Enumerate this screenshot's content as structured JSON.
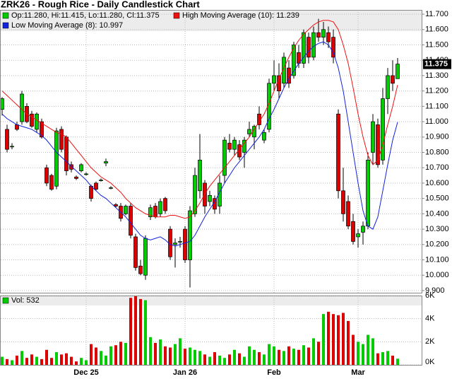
{
  "chart_data": [
    {
      "type": "candlestick",
      "title": "ZRK26 - Rough Rice - Daily Candlestick Chart",
      "categories": [
        null,
        null,
        null,
        null,
        null,
        null,
        null,
        null,
        null,
        null,
        null,
        null,
        null,
        null,
        null,
        null,
        null,
        "Dec 25",
        null,
        null,
        null,
        null,
        null,
        null,
        null,
        null,
        null,
        null,
        null,
        null,
        null,
        null,
        null,
        null,
        null,
        null,
        null,
        "Jan 26",
        null,
        null,
        null,
        null,
        null,
        null,
        null,
        null,
        null,
        null,
        null,
        null,
        null,
        null,
        null,
        null,
        null,
        "Feb",
        null,
        null,
        null,
        null,
        null,
        null,
        null,
        null,
        null,
        null,
        null,
        null,
        null,
        null,
        null,
        null,
        "Mar",
        null,
        null,
        null,
        null,
        null,
        null,
        null,
        null
      ],
      "ylim": [
        9.886,
        11.728
      ],
      "yticks": [
        {
          "value": 9.9,
          "label": "9.900"
        },
        {
          "value": 10.0,
          "label": "10.000"
        },
        {
          "value": 10.1,
          "label": "10.100"
        },
        {
          "value": 10.2,
          "label": "10.200"
        },
        {
          "value": 10.3,
          "label": "10.300"
        },
        {
          "value": 10.4,
          "label": "10.400"
        },
        {
          "value": 10.5,
          "label": "10.500"
        },
        {
          "value": 10.6,
          "label": "10.600"
        },
        {
          "value": 10.7,
          "label": "10.700"
        },
        {
          "value": 10.8,
          "label": "10.800"
        },
        {
          "value": 10.9,
          "label": "10.900"
        },
        {
          "value": 11.0,
          "label": "11.000"
        },
        {
          "value": 11.1,
          "label": "11.100"
        },
        {
          "value": 11.2,
          "label": "11.200"
        },
        {
          "value": 11.3,
          "label": "11.300"
        },
        {
          "value": 11.4,
          "label": "11.400"
        },
        {
          "value": 11.5,
          "label": "11.500"
        },
        {
          "value": 11.6,
          "label": "11.600"
        },
        {
          "value": 11.7,
          "label": "11.700"
        }
      ],
      "grid": true,
      "last_label": "11.375",
      "series": [
        {
          "name": "Op:11.280, Hi:11.415, Lo:11.280, Cl:11.375",
          "color": "#00cc00",
          "down_color": "#dd0000",
          "open": [
            11.08,
            10.95,
            10.84,
            10.98,
            11.0,
            11.1,
            11.05,
            10.95,
            11.0,
            10.7,
            10.65,
            10.58,
            10.95,
            10.9,
            10.72,
            10.64,
            10.68,
            10.66,
            10.58,
            10.6,
            10.62,
            10.73,
            10.57,
            10.46,
            10.45,
            10.4,
            10.45,
            10.25,
            10.06,
            10.0,
            10.38,
            10.45,
            10.4,
            10.5,
            10.3,
            10.2,
            10.22,
            10.3,
            10.1,
            10.4,
            10.55,
            10.6,
            10.48,
            10.5,
            10.45,
            10.65,
            10.86,
            10.82,
            10.85,
            10.8,
            10.92,
            10.9,
            11.05,
            10.88,
            10.95,
            11.25,
            11.3,
            11.25,
            11.35,
            11.3,
            11.45,
            11.38,
            11.55,
            11.42,
            11.58,
            11.55,
            11.58,
            11.55,
            11.05,
            10.55,
            10.48,
            10.35,
            10.25,
            10.28,
            10.32,
            10.8,
            10.98,
            10.75,
            11.15,
            11.3,
            11.28
          ],
          "high": [
            11.16,
            10.98,
            10.86,
            11.0,
            11.2,
            11.12,
            11.07,
            11.06,
            11.02,
            10.72,
            10.66,
            10.96,
            10.97,
            10.91,
            10.74,
            10.65,
            10.73,
            10.67,
            10.59,
            10.61,
            10.63,
            10.76,
            10.58,
            10.47,
            10.47,
            10.46,
            10.47,
            10.27,
            10.1,
            10.26,
            10.46,
            10.47,
            10.5,
            10.51,
            10.32,
            10.24,
            10.25,
            10.32,
            10.45,
            10.7,
            10.92,
            10.62,
            10.55,
            10.52,
            10.65,
            10.9,
            10.92,
            10.9,
            10.88,
            10.9,
            11.0,
            10.98,
            11.1,
            10.95,
            11.28,
            11.4,
            11.38,
            11.45,
            11.4,
            11.52,
            11.5,
            11.6,
            11.58,
            11.62,
            11.67,
            11.65,
            11.62,
            11.6,
            11.08,
            10.7,
            10.52,
            10.4,
            10.3,
            10.35,
            10.8,
            11.05,
            11.02,
            11.22,
            11.35,
            11.4,
            11.415
          ],
          "low": [
            11.04,
            10.8,
            10.82,
            10.94,
            10.98,
            10.99,
            10.96,
            10.93,
            10.89,
            10.58,
            10.55,
            10.56,
            10.8,
            10.65,
            10.67,
            10.62,
            10.67,
            10.65,
            10.48,
            10.55,
            10.61,
            10.71,
            10.56,
            10.44,
            10.35,
            10.39,
            10.24,
            10.03,
            10.0,
            9.97,
            10.36,
            10.37,
            10.38,
            10.4,
            10.1,
            10.05,
            10.18,
            10.08,
            9.92,
            10.38,
            10.5,
            10.4,
            10.45,
            10.4,
            10.4,
            10.6,
            10.8,
            10.78,
            10.75,
            10.7,
            10.9,
            10.82,
            10.95,
            10.86,
            10.93,
            11.2,
            11.15,
            11.22,
            11.22,
            11.28,
            11.35,
            11.35,
            11.38,
            11.4,
            11.52,
            11.5,
            11.48,
            11.38,
            10.5,
            10.35,
            10.3,
            10.2,
            10.18,
            10.2,
            10.3,
            10.72,
            10.7,
            10.72,
            11.05,
            11.2,
            11.28
          ],
          "close": [
            11.15,
            10.82,
            10.84,
            10.95,
            11.18,
            11.0,
            10.97,
            11.05,
            10.9,
            10.6,
            10.56,
            10.94,
            10.82,
            10.68,
            10.69,
            10.63,
            10.72,
            10.66,
            10.5,
            10.56,
            10.62,
            10.74,
            10.57,
            10.45,
            10.37,
            10.45,
            10.26,
            10.05,
            10.01,
            10.24,
            10.44,
            10.38,
            10.48,
            10.42,
            10.12,
            10.21,
            10.22,
            10.1,
            10.42,
            10.65,
            10.75,
            10.45,
            10.52,
            10.43,
            10.6,
            10.88,
            10.82,
            10.88,
            10.77,
            10.88,
            10.95,
            10.97,
            10.98,
            10.93,
            11.25,
            11.3,
            11.2,
            11.42,
            11.25,
            11.5,
            11.38,
            11.58,
            11.42,
            11.58,
            11.55,
            11.6,
            11.52,
            11.42,
            10.55,
            10.4,
            10.32,
            10.22,
            10.27,
            10.32,
            10.75,
            11.0,
            10.72,
            11.15,
            11.3,
            11.25,
            11.375
          ]
        },
        {
          "name": "High Moving Average (10): 11.239",
          "color": "#ee1111",
          "values": [
            11.2,
            11.17,
            11.14,
            11.11,
            11.08,
            11.05,
            11.03,
            11.01,
            10.99,
            10.97,
            10.95,
            10.93,
            10.92,
            10.9,
            10.86,
            10.82,
            10.78,
            10.74,
            10.7,
            10.67,
            10.64,
            10.62,
            10.6,
            10.57,
            10.54,
            10.5,
            10.47,
            10.44,
            10.42,
            10.4,
            10.39,
            10.38,
            10.38,
            10.38,
            10.39,
            10.39,
            10.38,
            10.37,
            10.38,
            10.42,
            10.47,
            10.53,
            10.58,
            10.62,
            10.66,
            10.7,
            10.74,
            10.78,
            10.82,
            10.86,
            10.9,
            10.95,
            11.0,
            11.05,
            11.12,
            11.2,
            11.28,
            11.35,
            11.42,
            11.48,
            11.53,
            11.57,
            11.6,
            11.63,
            11.65,
            11.66,
            11.66,
            11.65,
            11.6,
            11.5,
            11.38,
            11.22,
            11.05,
            10.9,
            10.78,
            10.72,
            10.75,
            10.85,
            10.98,
            11.1,
            11.239
          ]
        },
        {
          "name": "Low Moving Average (8): 10.997",
          "color": "#1122dd",
          "values": [
            11.05,
            11.02,
            11.0,
            10.98,
            10.97,
            10.96,
            10.95,
            10.93,
            10.91,
            10.88,
            10.84,
            10.8,
            10.77,
            10.74,
            10.71,
            10.68,
            10.65,
            10.62,
            10.58,
            10.55,
            10.52,
            10.5,
            10.47,
            10.44,
            10.41,
            10.38,
            10.34,
            10.3,
            10.26,
            10.24,
            10.23,
            10.24,
            10.25,
            10.23,
            10.2,
            10.19,
            10.2,
            10.21,
            10.22,
            10.26,
            10.32,
            10.38,
            10.43,
            10.48,
            10.54,
            10.6,
            10.65,
            10.7,
            10.74,
            10.78,
            10.82,
            10.86,
            10.9,
            10.95,
            11.02,
            11.08,
            11.15,
            11.22,
            11.28,
            11.33,
            11.38,
            11.42,
            11.46,
            11.49,
            11.51,
            11.52,
            11.5,
            11.45,
            11.35,
            11.2,
            11.0,
            10.8,
            10.6,
            10.42,
            10.32,
            10.3,
            10.38,
            10.55,
            10.72,
            10.88,
            10.997
          ]
        }
      ]
    },
    {
      "type": "bar",
      "name": "Vol: 532",
      "color": "#00cc00",
      "ylim": [
        0,
        6000
      ],
      "yticks": [
        {
          "value": 0,
          "label": "0K"
        },
        {
          "value": 2000,
          "label": "2K"
        },
        {
          "value": 4000,
          "label": "4K"
        },
        {
          "value": 6000,
          "label": "6K"
        }
      ],
      "values": [
        700,
        500,
        400,
        800,
        1200,
        600,
        900,
        700,
        500,
        1300,
        600,
        1100,
        900,
        1000,
        700,
        300,
        600,
        400,
        1800,
        1500,
        1200,
        800,
        1600,
        1700,
        2000,
        1900,
        5800,
        6000,
        5700,
        5600,
        2400,
        1900,
        2200,
        1600,
        1500,
        1800,
        2300,
        1400,
        1500,
        1300,
        1200,
        900,
        700,
        1100,
        800,
        600,
        900,
        1300,
        1000,
        700,
        1600,
        1300,
        1100,
        900,
        1800,
        1600,
        1300,
        1200,
        1600,
        1400,
        1300,
        1700,
        1500,
        2300,
        2000,
        4400,
        4600,
        4400,
        4300,
        4500,
        3800,
        2600,
        2000,
        1800,
        2600,
        2300,
        1000,
        1100,
        1200,
        800,
        532
      ]
    }
  ]
}
